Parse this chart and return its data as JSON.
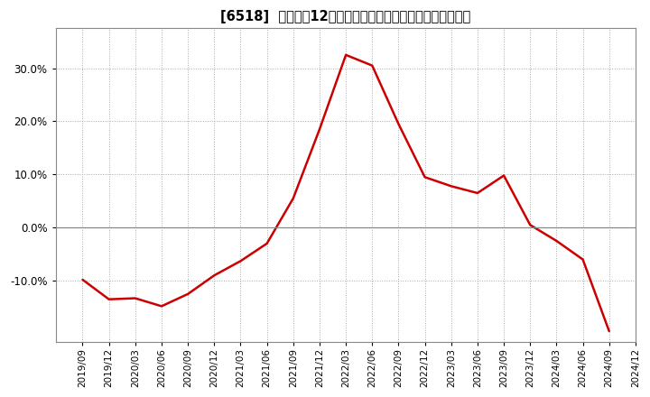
{
  "title": "[6518]  売上高の12か月移動合計の対前年同期増減率の推移",
  "line_color": "#cc0000",
  "background_color": "#ffffff",
  "plot_bg_color": "#ffffff",
  "grid_color": "#aaaaaa",
  "ylim": [
    -0.215,
    0.375
  ],
  "yticks": [
    -0.1,
    0.0,
    0.1,
    0.2,
    0.3
  ],
  "dates": [
    "2019/09",
    "2019/12",
    "2020/03",
    "2020/06",
    "2020/09",
    "2020/12",
    "2021/03",
    "2021/06",
    "2021/09",
    "2021/12",
    "2022/03",
    "2022/06",
    "2022/09",
    "2022/12",
    "2023/03",
    "2023/06",
    "2023/09",
    "2023/12",
    "2024/03",
    "2024/06",
    "2024/09",
    "2024/12"
  ],
  "values": [
    -0.098,
    -0.135,
    -0.133,
    -0.148,
    -0.125,
    -0.09,
    -0.063,
    -0.03,
    0.055,
    0.185,
    0.325,
    0.305,
    0.195,
    0.095,
    0.078,
    0.065,
    0.098,
    0.005,
    -0.025,
    -0.06,
    -0.195,
    null
  ]
}
